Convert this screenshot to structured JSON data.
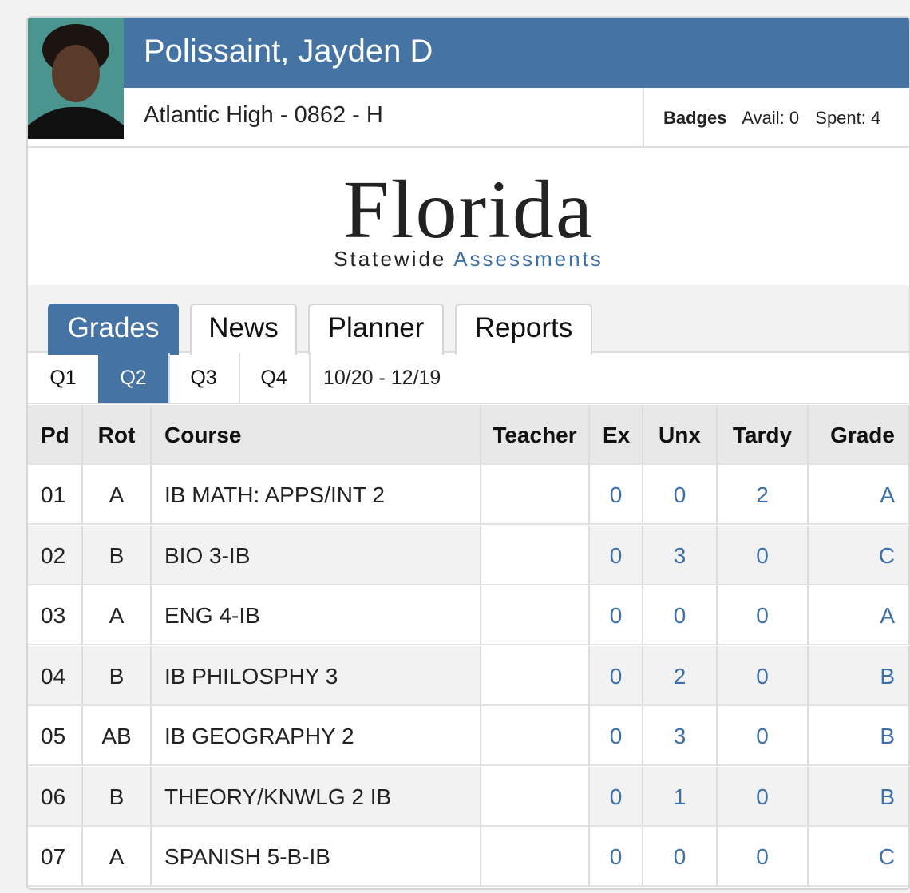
{
  "header": {
    "name": "Polissaint, Jayden D",
    "school": "Atlantic High - 0862 - H",
    "badges": {
      "label": "Badges",
      "avail": "Avail: 0",
      "spent": "Spent: 4"
    }
  },
  "logo": {
    "title": "Florida",
    "sub1": "Statewide",
    "sub2": "Assessments"
  },
  "tabs": [
    "Grades",
    "News",
    "Planner",
    "Reports"
  ],
  "active_tab": 0,
  "quarters": [
    "Q1",
    "Q2",
    "Q3",
    "Q4"
  ],
  "active_quarter": 1,
  "date_range": "10/20 - 12/19",
  "table": {
    "columns": [
      "Pd",
      "Rot",
      "Course",
      "Teacher",
      "Ex",
      "Unx",
      "Tardy",
      "Grade"
    ],
    "rows": [
      [
        "01",
        "A",
        "IB MATH: APPS/INT 2",
        "",
        0,
        0,
        2,
        "A"
      ],
      [
        "02",
        "B",
        "BIO 3-IB",
        "",
        0,
        3,
        0,
        "C"
      ],
      [
        "03",
        "A",
        "ENG 4-IB",
        "",
        0,
        0,
        0,
        "A"
      ],
      [
        "04",
        "B",
        "IB PHILOSPHY 3",
        "",
        0,
        2,
        0,
        "B"
      ],
      [
        "05",
        "AB",
        "IB GEOGRAPHY 2",
        "",
        0,
        3,
        0,
        "B"
      ],
      [
        "06",
        "B",
        "THEORY/KNWLG 2 IB",
        "",
        0,
        1,
        0,
        "B"
      ],
      [
        "07",
        "A",
        "SPANISH 5-B-IB",
        "",
        0,
        0,
        0,
        "C"
      ]
    ]
  }
}
